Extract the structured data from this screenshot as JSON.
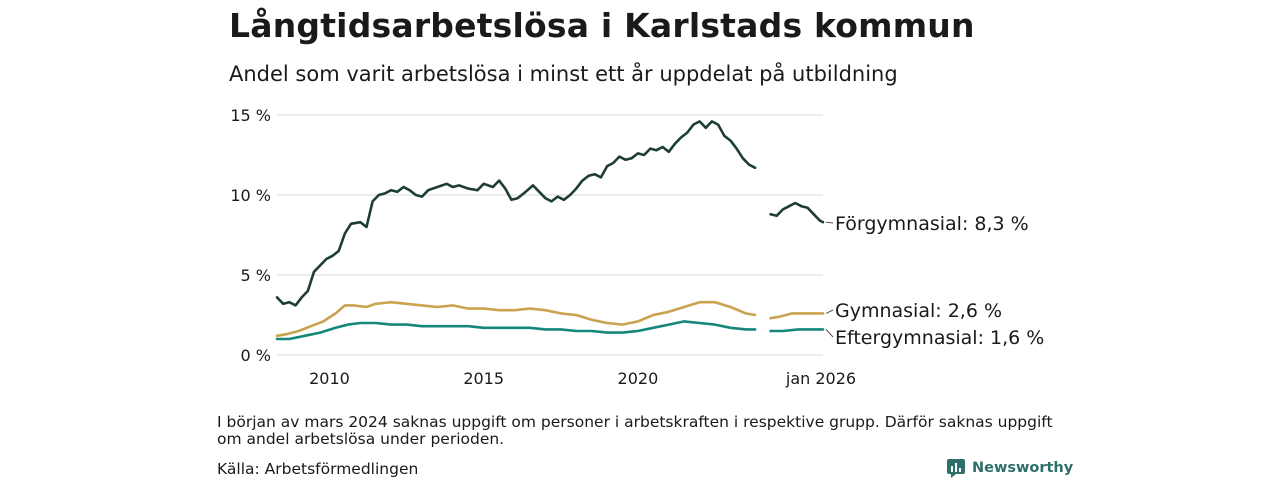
{
  "header": {
    "title": "Långtidsarbetslösa i Karlstads kommun",
    "subtitle": "Andel som varit arbetslösa i minst ett år uppdelat på utbildning"
  },
  "footer": {
    "note": "I början av mars 2024 saknas uppgift om personer i arbetskraften i respektive grupp. Därför saknas uppgift om andel arbetslösa under perioden.",
    "source": "Källa: Arbetsförmedlingen",
    "brand": "Newsworthy",
    "brand_icon": "bar-chart-logo-icon"
  },
  "colors": {
    "forgymnasial": "#1e3d34",
    "gymnasial": "#c9a34e",
    "eftergymnasial": "#14877a",
    "grid": "#d9d9d9",
    "brand": "#2f6f6a"
  },
  "chart_data": {
    "type": "line",
    "title": "Långtidsarbetslösa i Karlstads kommun",
    "subtitle": "Andel som varit arbetslösa i minst ett år uppdelat på utbildning",
    "xlabel": "",
    "ylabel": "",
    "xlim": [
      2008.3,
      2026.0
    ],
    "ylim": [
      0,
      15
    ],
    "y_ticks": [
      0,
      5,
      10,
      15
    ],
    "y_tick_labels": [
      "0 %",
      "5 %",
      "10 %",
      "15 %"
    ],
    "x_ticks": [
      2010,
      2015,
      2020,
      2026.0
    ],
    "x_tick_labels": [
      "2010",
      "2015",
      "2020",
      "jan 2026"
    ],
    "grid": true,
    "legend": "end-labels",
    "gap": [
      2024.0,
      2024.3
    ],
    "series": [
      {
        "name": "Förgymnasial",
        "end_label": "Förgymnasial: 8,3 %",
        "color_key": "forgymnasial",
        "points": [
          [
            2008.3,
            3.6
          ],
          [
            2008.5,
            3.2
          ],
          [
            2008.7,
            3.3
          ],
          [
            2008.9,
            3.1
          ],
          [
            2009.1,
            3.6
          ],
          [
            2009.3,
            4.0
          ],
          [
            2009.5,
            5.2
          ],
          [
            2009.7,
            5.6
          ],
          [
            2009.9,
            6.0
          ],
          [
            2010.1,
            6.2
          ],
          [
            2010.3,
            6.5
          ],
          [
            2010.5,
            7.6
          ],
          [
            2010.7,
            8.2
          ],
          [
            2011.0,
            8.3
          ],
          [
            2011.2,
            8.0
          ],
          [
            2011.4,
            9.6
          ],
          [
            2011.6,
            10.0
          ],
          [
            2011.8,
            10.1
          ],
          [
            2012.0,
            10.3
          ],
          [
            2012.2,
            10.2
          ],
          [
            2012.4,
            10.5
          ],
          [
            2012.6,
            10.3
          ],
          [
            2012.8,
            10.0
          ],
          [
            2013.0,
            9.9
          ],
          [
            2013.2,
            10.3
          ],
          [
            2013.5,
            10.5
          ],
          [
            2013.8,
            10.7
          ],
          [
            2014.0,
            10.5
          ],
          [
            2014.2,
            10.6
          ],
          [
            2014.5,
            10.4
          ],
          [
            2014.8,
            10.3
          ],
          [
            2015.0,
            10.7
          ],
          [
            2015.3,
            10.5
          ],
          [
            2015.5,
            10.9
          ],
          [
            2015.7,
            10.4
          ],
          [
            2015.9,
            9.7
          ],
          [
            2016.1,
            9.8
          ],
          [
            2016.3,
            10.1
          ],
          [
            2016.6,
            10.6
          ],
          [
            2016.8,
            10.2
          ],
          [
            2017.0,
            9.8
          ],
          [
            2017.2,
            9.6
          ],
          [
            2017.4,
            9.9
          ],
          [
            2017.6,
            9.7
          ],
          [
            2017.8,
            10.0
          ],
          [
            2018.0,
            10.4
          ],
          [
            2018.2,
            10.9
          ],
          [
            2018.4,
            11.2
          ],
          [
            2018.6,
            11.3
          ],
          [
            2018.8,
            11.1
          ],
          [
            2019.0,
            11.8
          ],
          [
            2019.2,
            12.0
          ],
          [
            2019.4,
            12.4
          ],
          [
            2019.6,
            12.2
          ],
          [
            2019.8,
            12.3
          ],
          [
            2020.0,
            12.6
          ],
          [
            2020.2,
            12.5
          ],
          [
            2020.4,
            12.9
          ],
          [
            2020.6,
            12.8
          ],
          [
            2020.8,
            13.0
          ],
          [
            2021.0,
            12.7
          ],
          [
            2021.2,
            13.2
          ],
          [
            2021.4,
            13.6
          ],
          [
            2021.6,
            13.9
          ],
          [
            2021.8,
            14.4
          ],
          [
            2022.0,
            14.6
          ],
          [
            2022.2,
            14.2
          ],
          [
            2022.4,
            14.6
          ],
          [
            2022.6,
            14.4
          ],
          [
            2022.8,
            13.7
          ],
          [
            2023.0,
            13.4
          ],
          [
            2023.2,
            12.9
          ],
          [
            2023.4,
            12.3
          ],
          [
            2023.6,
            11.9
          ],
          [
            2023.8,
            11.7
          ],
          [
            2024.3,
            8.8
          ],
          [
            2024.5,
            8.7
          ],
          [
            2024.7,
            9.1
          ],
          [
            2024.9,
            9.3
          ],
          [
            2025.1,
            9.5
          ],
          [
            2025.3,
            9.3
          ],
          [
            2025.5,
            9.2
          ],
          [
            2025.7,
            8.8
          ],
          [
            2025.9,
            8.4
          ],
          [
            2026.0,
            8.3
          ]
        ]
      },
      {
        "name": "Gymnasial",
        "end_label": "Gymnasial: 2,6 %",
        "color_key": "gymnasial",
        "points": [
          [
            2008.3,
            1.2
          ],
          [
            2008.6,
            1.3
          ],
          [
            2009.0,
            1.5
          ],
          [
            2009.4,
            1.8
          ],
          [
            2009.8,
            2.1
          ],
          [
            2010.2,
            2.6
          ],
          [
            2010.5,
            3.1
          ],
          [
            2010.8,
            3.1
          ],
          [
            2011.2,
            3.0
          ],
          [
            2011.5,
            3.2
          ],
          [
            2012.0,
            3.3
          ],
          [
            2012.5,
            3.2
          ],
          [
            2013.0,
            3.1
          ],
          [
            2013.5,
            3.0
          ],
          [
            2014.0,
            3.1
          ],
          [
            2014.5,
            2.9
          ],
          [
            2015.0,
            2.9
          ],
          [
            2015.5,
            2.8
          ],
          [
            2016.0,
            2.8
          ],
          [
            2016.5,
            2.9
          ],
          [
            2017.0,
            2.8
          ],
          [
            2017.5,
            2.6
          ],
          [
            2018.0,
            2.5
          ],
          [
            2018.5,
            2.2
          ],
          [
            2019.0,
            2.0
          ],
          [
            2019.5,
            1.9
          ],
          [
            2020.0,
            2.1
          ],
          [
            2020.5,
            2.5
          ],
          [
            2021.0,
            2.7
          ],
          [
            2021.5,
            3.0
          ],
          [
            2022.0,
            3.3
          ],
          [
            2022.5,
            3.3
          ],
          [
            2023.0,
            3.0
          ],
          [
            2023.5,
            2.6
          ],
          [
            2023.8,
            2.5
          ],
          [
            2024.3,
            2.3
          ],
          [
            2024.6,
            2.4
          ],
          [
            2025.0,
            2.6
          ],
          [
            2025.5,
            2.6
          ],
          [
            2026.0,
            2.6
          ]
        ]
      },
      {
        "name": "Eftergymnasial",
        "end_label": "Eftergymnasial: 1,6 %",
        "color_key": "eftergymnasial",
        "points": [
          [
            2008.3,
            1.0
          ],
          [
            2008.7,
            1.0
          ],
          [
            2009.2,
            1.2
          ],
          [
            2009.7,
            1.4
          ],
          [
            2010.2,
            1.7
          ],
          [
            2010.6,
            1.9
          ],
          [
            2011.0,
            2.0
          ],
          [
            2011.5,
            2.0
          ],
          [
            2012.0,
            1.9
          ],
          [
            2012.5,
            1.9
          ],
          [
            2013.0,
            1.8
          ],
          [
            2013.5,
            1.8
          ],
          [
            2014.0,
            1.8
          ],
          [
            2014.5,
            1.8
          ],
          [
            2015.0,
            1.7
          ],
          [
            2015.5,
            1.7
          ],
          [
            2016.0,
            1.7
          ],
          [
            2016.5,
            1.7
          ],
          [
            2017.0,
            1.6
          ],
          [
            2017.5,
            1.6
          ],
          [
            2018.0,
            1.5
          ],
          [
            2018.5,
            1.5
          ],
          [
            2019.0,
            1.4
          ],
          [
            2019.5,
            1.4
          ],
          [
            2020.0,
            1.5
          ],
          [
            2020.5,
            1.7
          ],
          [
            2021.0,
            1.9
          ],
          [
            2021.5,
            2.1
          ],
          [
            2022.0,
            2.0
          ],
          [
            2022.5,
            1.9
          ],
          [
            2023.0,
            1.7
          ],
          [
            2023.5,
            1.6
          ],
          [
            2023.8,
            1.6
          ],
          [
            2024.3,
            1.5
          ],
          [
            2024.7,
            1.5
          ],
          [
            2025.2,
            1.6
          ],
          [
            2025.6,
            1.6
          ],
          [
            2026.0,
            1.6
          ]
        ]
      }
    ]
  }
}
